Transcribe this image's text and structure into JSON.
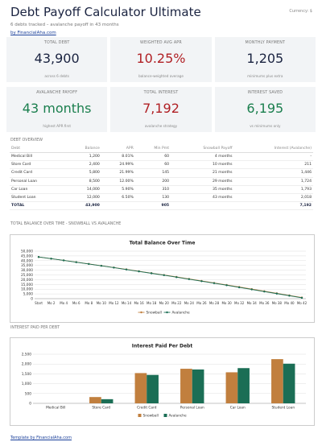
{
  "header": {
    "title": "Debt Payoff Calculator Ultimate",
    "currency": "Currency: $",
    "subtitle": "6 debts tracked – avalanche payoff in 43 months",
    "link": "by FinancialAha.com"
  },
  "cards": [
    {
      "label": "TOTAL DEBT",
      "value": "43,900",
      "note": "across 6 debts",
      "tone": "dark"
    },
    {
      "label": "WEIGHTED AVG APR",
      "value": "10.25%",
      "note": "balance-weighted average",
      "tone": "red"
    },
    {
      "label": "MONTHLY PAYMENT",
      "value": "1,205",
      "note": "minimums plus extra",
      "tone": "dark"
    },
    {
      "label": "AVALANCHE PAYOFF",
      "value": "43 months",
      "note": "highest APR first",
      "tone": "green"
    },
    {
      "label": "TOTAL INTEREST",
      "value": "7,192",
      "note": "avalanche strategy",
      "tone": "red"
    },
    {
      "label": "INTEREST SAVED",
      "value": "6,195",
      "note": "vs minimums only",
      "tone": "green"
    }
  ],
  "table": {
    "title": "DEBT OVERVIEW",
    "columns": [
      "Debt",
      "Balance",
      "APR",
      "Min Pmt",
      "Snowball Payoff",
      "Interest (Avalanche)"
    ],
    "rows": [
      [
        "Medical Bill",
        "1,200",
        "8.01%",
        "60",
        "4 months",
        "-"
      ],
      [
        "Store Card",
        "2,400",
        "24.99%",
        "60",
        "10 months",
        "211"
      ],
      [
        "Credit Card",
        "5,800",
        "21.99%",
        "145",
        "21 months",
        "1,446"
      ],
      [
        "Personal Loan",
        "8,500",
        "12.00%",
        "200",
        "29 months",
        "1,724"
      ],
      [
        "Car Loan",
        "14,000",
        "5.90%",
        "310",
        "35 months",
        "1,793"
      ],
      [
        "Student Loan",
        "12,000",
        "6.50%",
        "130",
        "43 months",
        "2,018"
      ]
    ],
    "total": [
      "TOTAL",
      "43,900",
      "",
      "905",
      "",
      "7,192"
    ]
  },
  "sections": [
    "TOTAL BALANCE OVER TIME - SNOWBALL VS AVALANCHE",
    "INTEREST PAID PER DEBT"
  ],
  "footer": "Template by FinancialAha.com",
  "chart_data": [
    {
      "type": "line",
      "title": "Total Balance Over Time",
      "categories": [
        "Start",
        "Mo 2",
        "Mo 4",
        "Mo 6",
        "Mo 8",
        "Mo 10",
        "Mo 12",
        "Mo 14",
        "Mo 16",
        "Mo 18",
        "Mo 20",
        "Mo 22",
        "Mo 24",
        "Mo 26",
        "Mo 28",
        "Mo 30",
        "Mo 32",
        "Mo 34",
        "Mo 36",
        "Mo 38",
        "Mo 40",
        "Mo 42"
      ],
      "series": [
        {
          "name": "Snowball",
          "color": "#c17f3e",
          "values": [
            43900,
            42100,
            40300,
            38500,
            36600,
            34700,
            32800,
            30900,
            28900,
            26900,
            24900,
            22900,
            20800,
            18700,
            16600,
            14500,
            12300,
            10100,
            7900,
            5700,
            3400,
            1200
          ]
        },
        {
          "name": "Avalanche",
          "color": "#1b6e55",
          "values": [
            43900,
            42100,
            40300,
            38400,
            36500,
            34600,
            32700,
            30700,
            28700,
            26700,
            24700,
            22600,
            20500,
            18400,
            16300,
            14100,
            11900,
            9700,
            7500,
            5300,
            3100,
            900
          ]
        }
      ],
      "ylim": [
        0,
        50000
      ],
      "yticks": [
        0,
        {
          "value": 5000,
          "label": "5,000"
        },
        {
          "value": 10000,
          "label": "10,000"
        },
        {
          "value": 15000,
          "label": "15,000"
        },
        {
          "value": 20000,
          "label": "20,000"
        },
        {
          "value": 25000,
          "label": "25,000"
        },
        {
          "value": 30000,
          "label": "30,000"
        },
        {
          "value": 35000,
          "label": "35,000"
        },
        {
          "value": 40000,
          "label": "40,000"
        },
        {
          "value": 45000,
          "label": "45,000"
        },
        {
          "value": 50000,
          "label": "50,000"
        }
      ],
      "grid": true,
      "legend": "bottom"
    },
    {
      "type": "bar",
      "title": "Interest Paid Per Debt",
      "categories": [
        "Medical Bill",
        "Store Card",
        "Credit Card",
        "Personal Loan",
        "Car Loan",
        "Student Loan"
      ],
      "series": [
        {
          "name": "Snowball",
          "color": "#c17f3e",
          "values": [
            0,
            320,
            1540,
            1760,
            1580,
            2250
          ]
        },
        {
          "name": "Avalanche",
          "color": "#1b6e55",
          "values": [
            0,
            211,
            1446,
            1724,
            1793,
            2018
          ]
        }
      ],
      "ylim": [
        0,
        2500
      ],
      "yticks": [
        0,
        500,
        {
          "value": 1000,
          "label": "1,000"
        },
        {
          "value": 1500,
          "label": "1,500"
        },
        {
          "value": 2000,
          "label": "2,000"
        },
        {
          "value": 2500,
          "label": "2,500"
        }
      ],
      "grid": true,
      "legend": "bottom"
    }
  ]
}
